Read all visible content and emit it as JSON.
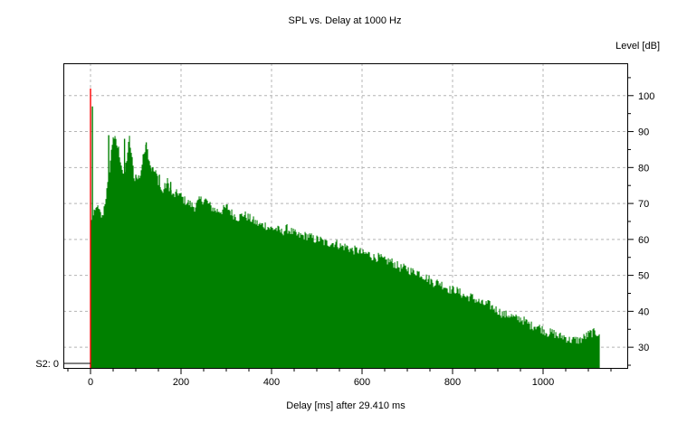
{
  "chart_data": {
    "type": "bar",
    "title": "SPL vs. Delay at  1000 Hz",
    "xlabel": "Delay [ms] after   29.410 ms",
    "ylabel": "Level [dB]",
    "x_range": [
      -60,
      1188
    ],
    "y_range": [
      24,
      109
    ],
    "x_ticks": [
      0,
      200,
      400,
      600,
      800,
      1000
    ],
    "y_ticks": [
      30,
      40,
      50,
      60,
      70,
      80,
      90,
      100
    ],
    "grid": true,
    "y_axis_side": "right",
    "baseline_marker": {
      "label": "S2: 0",
      "level": 25.5
    },
    "direct_sound": {
      "x": 0,
      "value": 102,
      "color": "#ff0000"
    },
    "bars_color": "#008000",
    "series": [
      {
        "x_start": 1,
        "x_step": 12,
        "values": [
          65,
          69,
          66,
          75,
          89,
          85,
          77,
          88,
          76,
          78,
          87,
          80,
          78,
          73,
          76,
          72,
          73,
          71,
          70,
          69,
          71,
          71,
          69,
          68,
          68,
          69,
          67,
          66,
          67,
          66,
          65,
          64,
          64,
          63,
          63,
          62,
          63,
          62,
          61,
          61,
          61,
          60,
          60,
          59,
          59,
          59,
          58,
          58,
          57,
          57,
          56,
          56,
          55,
          55,
          54,
          54,
          53,
          52,
          52,
          51,
          51,
          50,
          49,
          48,
          48,
          47,
          46,
          46,
          45,
          44,
          44,
          43,
          42,
          42,
          41,
          40,
          39,
          39,
          38,
          38,
          37,
          36,
          36,
          35,
          34,
          34,
          33,
          33,
          32,
          32,
          32,
          33,
          34,
          34
        ]
      }
    ],
    "peaks": [
      {
        "x": 4,
        "value": 97
      },
      {
        "x": 14,
        "value": 69
      },
      {
        "x": 40,
        "value": 89
      },
      {
        "x": 53,
        "value": 85
      },
      {
        "x": 64,
        "value": 77
      },
      {
        "x": 75,
        "value": 88
      },
      {
        "x": 100,
        "value": 78
      },
      {
        "x": 123,
        "value": 87
      },
      {
        "x": 137,
        "value": 80
      },
      {
        "x": 152,
        "value": 78
      },
      {
        "x": 177,
        "value": 76
      }
    ]
  }
}
